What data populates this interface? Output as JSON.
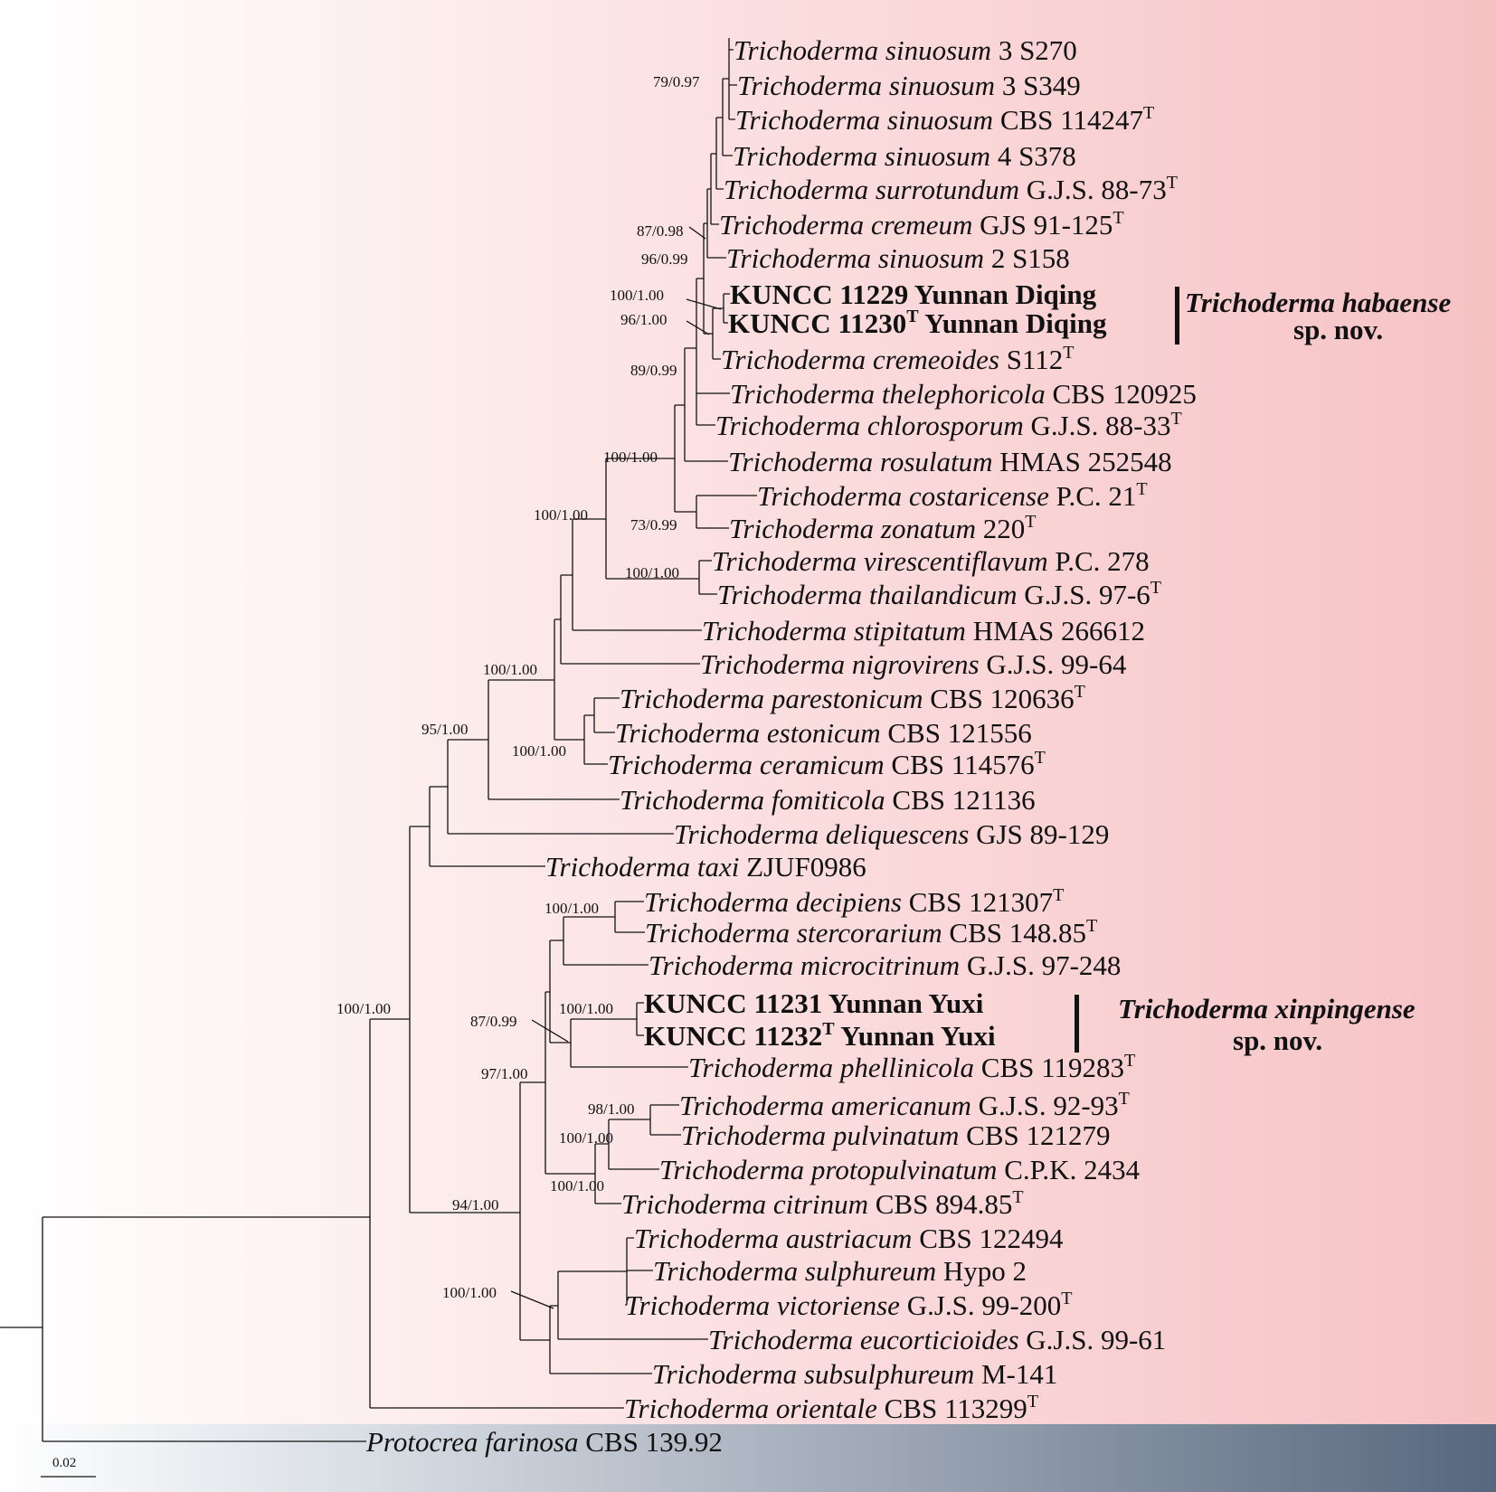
{
  "colors": {
    "background_left": "#ffffff",
    "background_right": "#f6c2c4",
    "footer_band": "#57677e",
    "branch": "#111111"
  },
  "taxa": [
    {
      "id": "t1",
      "species": "Trichoderma sinuosum",
      "strain": "3 S270",
      "type": false,
      "new": false
    },
    {
      "id": "t2",
      "species": "Trichoderma sinuosum",
      "strain": "3 S349",
      "type": false,
      "new": false
    },
    {
      "id": "t3",
      "species": "Trichoderma sinuosum",
      "strain": "CBS 114247",
      "type": true,
      "new": false
    },
    {
      "id": "t4",
      "species": "Trichoderma sinuosum",
      "strain": "4 S378",
      "type": false,
      "new": false
    },
    {
      "id": "t5",
      "species": "Trichoderma surrotundum",
      "strain": "G.J.S. 88-73",
      "type": true,
      "new": false
    },
    {
      "id": "t6",
      "species": "Trichoderma cremeum",
      "strain": "GJS 91-125",
      "type": true,
      "new": false
    },
    {
      "id": "t7",
      "species": "Trichoderma sinuosum",
      "strain": "2 S158",
      "type": false,
      "new": false
    },
    {
      "id": "t8",
      "species": "",
      "strain": "KUNCC 11229",
      "suffix": "Yunnan Diqing",
      "type": false,
      "new": true
    },
    {
      "id": "t9",
      "species": "",
      "strain": "KUNCC 11230",
      "suffix": "Yunnan Diqing",
      "type": true,
      "new": true
    },
    {
      "id": "t10",
      "species": "Trichoderma cremeoides",
      "strain": "S112",
      "type": true,
      "new": false
    },
    {
      "id": "t11",
      "species": "Trichoderma thelephoricola",
      "strain": "CBS 120925",
      "type": false,
      "new": false
    },
    {
      "id": "t12",
      "species": "Trichoderma chlorosporum",
      "strain": "G.J.S. 88-33",
      "type": true,
      "new": false
    },
    {
      "id": "t13",
      "species": "Trichoderma rosulatum",
      "strain": "HMAS 252548",
      "type": false,
      "new": false
    },
    {
      "id": "t14",
      "species": "Trichoderma costaricense",
      "strain": "P.C. 21",
      "type": true,
      "new": false
    },
    {
      "id": "t15",
      "species": "Trichoderma zonatum",
      "strain": "220",
      "type": true,
      "new": false
    },
    {
      "id": "t16",
      "species": "Trichoderma virescentiflavum",
      "strain": "P.C. 278",
      "type": false,
      "new": false
    },
    {
      "id": "t17",
      "species": "Trichoderma thailandicum",
      "strain": "G.J.S. 97-6",
      "type": true,
      "new": false
    },
    {
      "id": "t18",
      "species": "Trichoderma stipitatum",
      "strain": "HMAS 266612",
      "type": false,
      "new": false
    },
    {
      "id": "t19",
      "species": "Trichoderma nigrovirens",
      "strain": "G.J.S. 99-64",
      "type": false,
      "new": false
    },
    {
      "id": "t20",
      "species": "Trichoderma parestonicum",
      "strain": "CBS 120636",
      "type": true,
      "new": false
    },
    {
      "id": "t21",
      "species": "Trichoderma estonicum",
      "strain": "CBS 121556",
      "type": false,
      "new": false
    },
    {
      "id": "t22",
      "species": "Trichoderma ceramicum",
      "strain": "CBS 114576",
      "type": true,
      "new": false
    },
    {
      "id": "t23",
      "species": "Trichoderma fomiticola",
      "strain": "CBS 121136",
      "type": false,
      "new": false
    },
    {
      "id": "t24",
      "species": "Trichoderma deliquescens",
      "strain": "GJS 89-129",
      "type": false,
      "new": false
    },
    {
      "id": "t25",
      "species": "Trichoderma taxi",
      "strain": "ZJUF0986",
      "type": false,
      "new": false
    },
    {
      "id": "t26",
      "species": "Trichoderma decipiens",
      "strain": "CBS 121307",
      "type": true,
      "new": false
    },
    {
      "id": "t27",
      "species": "Trichoderma stercorarium",
      "strain": "CBS 148.85",
      "type": true,
      "new": false
    },
    {
      "id": "t28",
      "species": "Trichoderma microcitrinum",
      "strain": "G.J.S. 97-248",
      "type": false,
      "new": false
    },
    {
      "id": "t29",
      "species": "",
      "strain": "KUNCC 11231",
      "suffix": "Yunnan Yuxi",
      "type": false,
      "new": true
    },
    {
      "id": "t30",
      "species": "",
      "strain": "KUNCC 11232",
      "suffix": "Yunnan Yuxi",
      "type": true,
      "new": true
    },
    {
      "id": "t31",
      "species": "Trichoderma phellinicola",
      "strain": "CBS 119283",
      "type": true,
      "new": false
    },
    {
      "id": "t32",
      "species": "Trichoderma americanum",
      "strain": "G.J.S. 92-93",
      "type": true,
      "new": false
    },
    {
      "id": "t33",
      "species": "Trichoderma pulvinatum",
      "strain": "CBS 121279",
      "type": false,
      "new": false
    },
    {
      "id": "t34",
      "species": "Trichoderma protopulvinatum",
      "strain": "C.P.K. 2434",
      "type": false,
      "new": false
    },
    {
      "id": "t35",
      "species": "Trichoderma citrinum",
      "strain": "CBS 894.85",
      "type": true,
      "new": false
    },
    {
      "id": "t36",
      "species": "Trichoderma austriacum",
      "strain": "CBS 122494",
      "type": false,
      "new": false
    },
    {
      "id": "t37",
      "species": "Trichoderma sulphureum",
      "strain": "Hypo 2",
      "type": false,
      "new": false
    },
    {
      "id": "t38",
      "species": "Trichoderma victoriense",
      "strain": "G.J.S. 99-200",
      "type": true,
      "new": false
    },
    {
      "id": "t39",
      "species": "Trichoderma eucorticioides",
      "strain": "G.J.S. 99-61",
      "type": false,
      "new": false
    },
    {
      "id": "t40",
      "species": "Trichoderma subsulphureum",
      "strain": "M-141",
      "type": false,
      "new": false
    },
    {
      "id": "t41",
      "species": "Trichoderma orientale",
      "strain": "CBS 113299",
      "type": true,
      "new": false
    },
    {
      "id": "t42",
      "species": "Protocrea farinosa",
      "strain": "CBS 139.92",
      "type": false,
      "new": false
    }
  ],
  "type_marker": "T",
  "support_values": [
    "79/0.97",
    "87/0.98",
    "96/0.99",
    "100/1.00",
    "96/1.00",
    "89/0.99",
    "100/1.00",
    "73/0.99",
    "100/1.00",
    "100/1.00",
    "100/1.00",
    "100/1.00",
    "95/1.00",
    "100/1.00",
    "87/0.99",
    "100/1.00",
    "97/1.00",
    "98/1.00",
    "100/1.00",
    "100/1.00",
    "94/1.00",
    "100/1.00",
    "100/1.00"
  ],
  "new_species": [
    {
      "name": "Trichoderma habaense",
      "status": "sp. nov."
    },
    {
      "name": "Trichoderma xinpingense",
      "status": "sp. nov."
    }
  ],
  "scale_bar": {
    "label": "0.02"
  }
}
